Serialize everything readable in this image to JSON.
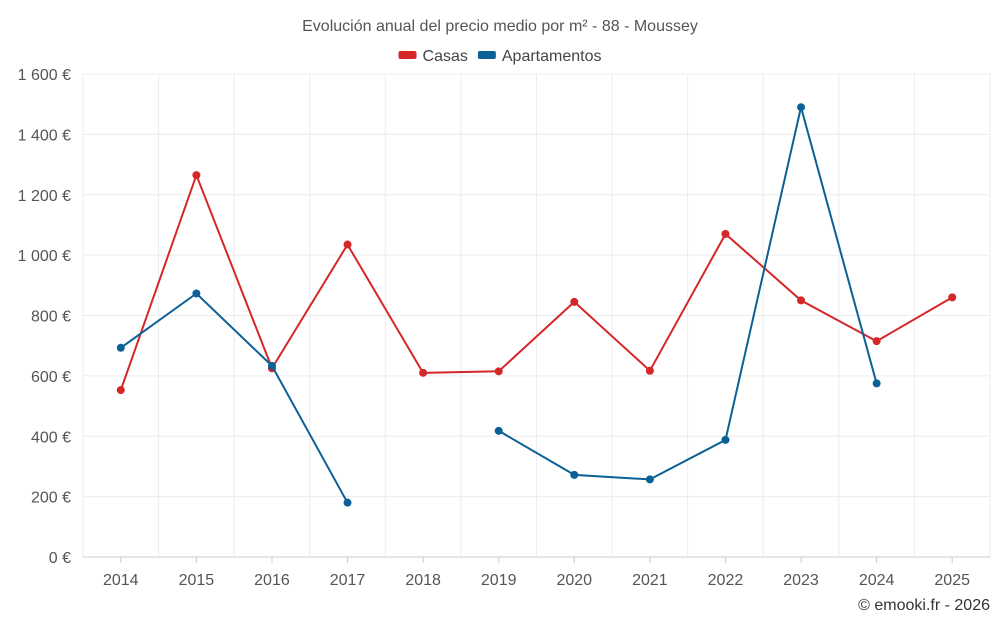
{
  "chart_data": {
    "type": "line",
    "title": "Evolución anual del precio medio por m² - 88 - Moussey",
    "x": [
      "2014",
      "2015",
      "2016",
      "2017",
      "2018",
      "2019",
      "2020",
      "2021",
      "2022",
      "2023",
      "2024",
      "2025"
    ],
    "ylim": [
      0,
      1600
    ],
    "yticks": [
      0,
      200,
      400,
      600,
      800,
      1000,
      1200,
      1400,
      1600
    ],
    "ytick_labels": [
      "0 €",
      "200 €",
      "400 €",
      "600 €",
      "800 €",
      "1 000 €",
      "1 200 €",
      "1 400 €",
      "1 600 €"
    ],
    "grid": true,
    "legend_position": "top-center",
    "series": [
      {
        "name": "Casas",
        "color": "#d62728",
        "values": [
          553,
          1265,
          625,
          1035,
          610,
          615,
          845,
          617,
          1070,
          850,
          715,
          860
        ]
      },
      {
        "name": "Apartamentos",
        "color": "#0b6196",
        "values": [
          693,
          873,
          633,
          180,
          null,
          418,
          272,
          257,
          388,
          1490,
          575,
          null
        ]
      }
    ]
  },
  "credit": "© emooki.fr - 2026"
}
